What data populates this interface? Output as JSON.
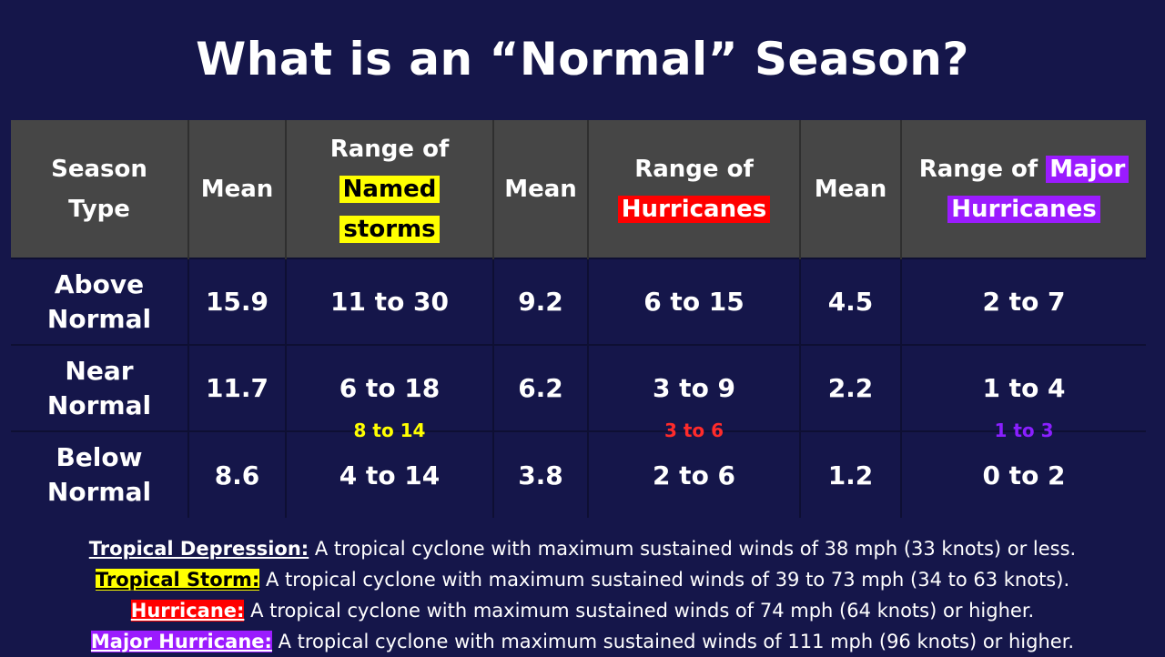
{
  "title": "What is an “Normal” Season?",
  "header": {
    "season_type_line1": "Season",
    "season_type_line2": "Type",
    "mean_1": "Mean",
    "named_prefix": "Range of",
    "named_line1": "Named",
    "named_line2": "storms",
    "mean_2": "Mean",
    "hurr_prefix": "Range of",
    "hurr_highlight": "Hurricanes",
    "mean_3": "Mean",
    "major_prefix": "Range of ",
    "major_highlight1": "Major",
    "major_highlight2": "Hurricanes"
  },
  "rows": [
    {
      "type_line1": "Above",
      "type_line2": "Normal",
      "named_mean": "15.9",
      "named_range": "11 to 30",
      "hurr_mean": "9.2",
      "hurr_range": "6 to 15",
      "major_mean": "4.5",
      "major_range": "2 to 7"
    },
    {
      "type_line1": "Near",
      "type_line2": "Normal",
      "named_mean": "11.7",
      "named_range": "6 to 18",
      "hurr_mean": "6.2",
      "hurr_range": "3 to 9",
      "major_mean": "2.2",
      "major_range": "1 to 4"
    },
    {
      "type_line1": "Below",
      "type_line2": "Normal",
      "named_mean": "8.6",
      "named_range": "4 to 14",
      "hurr_mean": "3.8",
      "hurr_range": "2 to 6",
      "major_mean": "1.2",
      "major_range": "0 to 2"
    }
  ],
  "forecast": {
    "named": "8 to 14",
    "hurricanes": "3 to 6",
    "major": "1 to 3"
  },
  "definitions": [
    {
      "term": "Tropical Depression:",
      "text": " A tropical cyclone with maximum sustained winds of 38 mph (33 knots) or less."
    },
    {
      "term": "Tropical Storm:",
      "text": " A tropical cyclone with maximum sustained winds of 39 to 73 mph (34 to 63 knots)."
    },
    {
      "term": "Hurricane:",
      "text": " A tropical cyclone with maximum sustained winds of 74 mph (64 knots) or higher."
    },
    {
      "term": "Major Hurricane:",
      "text": " A tropical cyclone with maximum sustained winds of 111 mph (96 knots) or higher."
    }
  ],
  "colors": {
    "background": "#15164a",
    "header_bg": "#464646",
    "named_storms": "#ffff00",
    "hurricanes": "#ff0000",
    "major_hurricanes": "#9b1bff"
  }
}
